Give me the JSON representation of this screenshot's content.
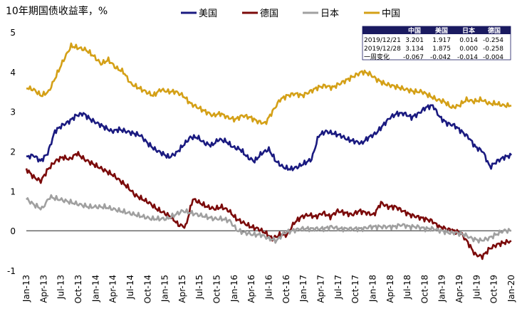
{
  "chart_data": {
    "type": "line",
    "title": "10年期国债收益率，%",
    "ylim": [
      -1,
      5
    ],
    "yticks": [
      5,
      4,
      3,
      2,
      1,
      0,
      -1
    ],
    "x_ticks": [
      "Jan-13",
      "Apr-13",
      "Jul-13",
      "Oct-13",
      "Jan-14",
      "Apr-14",
      "Jul-14",
      "Oct-14",
      "Jan-15",
      "Apr-15",
      "Jul-15",
      "Oct-15",
      "Jan-16",
      "Apr-16",
      "Jul-16",
      "Oct-16",
      "Jan-17",
      "Apr-17",
      "Jul-17",
      "Oct-17",
      "Jan-18",
      "Apr-18",
      "Jul-18",
      "Oct-18",
      "Jan-19",
      "Apr-19",
      "Jul-19",
      "Oct-19",
      "Jan-20"
    ],
    "series": [
      {
        "name": "美国",
        "color": "#1a1a80",
        "values": [
          1.85,
          1.9,
          1.75,
          1.95,
          2.5,
          2.65,
          2.75,
          2.9,
          2.95,
          2.8,
          2.7,
          2.6,
          2.5,
          2.55,
          2.5,
          2.45,
          2.4,
          2.2,
          2.05,
          1.95,
          1.85,
          1.95,
          2.15,
          2.35,
          2.35,
          2.2,
          2.15,
          2.3,
          2.25,
          2.1,
          2.05,
          1.85,
          1.75,
          1.95,
          2.05,
          1.75,
          1.6,
          1.55,
          1.6,
          1.7,
          1.8,
          2.4,
          2.5,
          2.45,
          2.4,
          2.3,
          2.25,
          2.2,
          2.35,
          2.45,
          2.65,
          2.85,
          2.95,
          2.95,
          2.85,
          2.95,
          3.1,
          3.15,
          2.85,
          2.7,
          2.65,
          2.5,
          2.35,
          2.1,
          2.0,
          1.6,
          1.75,
          1.85,
          1.9
        ]
      },
      {
        "name": "德国",
        "color": "#7b0a0a",
        "values": [
          1.55,
          1.35,
          1.25,
          1.55,
          1.75,
          1.85,
          1.8,
          1.95,
          1.8,
          1.7,
          1.6,
          1.5,
          1.4,
          1.25,
          1.1,
          0.9,
          0.8,
          0.7,
          0.55,
          0.45,
          0.35,
          0.15,
          0.1,
          0.8,
          0.7,
          0.6,
          0.55,
          0.6,
          0.5,
          0.3,
          0.2,
          0.1,
          0.05,
          -0.05,
          -0.2,
          -0.1,
          -0.1,
          0.2,
          0.35,
          0.4,
          0.35,
          0.45,
          0.35,
          0.5,
          0.45,
          0.4,
          0.5,
          0.45,
          0.4,
          0.7,
          0.6,
          0.6,
          0.5,
          0.4,
          0.35,
          0.3,
          0.25,
          0.1,
          0.05,
          0.0,
          -0.05,
          -0.3,
          -0.6,
          -0.65,
          -0.45,
          -0.35,
          -0.3,
          -0.258
        ]
      },
      {
        "name": "日本",
        "color": "#a0a0a0",
        "values": [
          0.8,
          0.65,
          0.55,
          0.85,
          0.8,
          0.75,
          0.7,
          0.65,
          0.6,
          0.6,
          0.6,
          0.55,
          0.5,
          0.45,
          0.4,
          0.35,
          0.3,
          0.3,
          0.3,
          0.4,
          0.5,
          0.45,
          0.4,
          0.35,
          0.3,
          0.3,
          0.25,
          0.0,
          -0.05,
          -0.1,
          -0.1,
          -0.2,
          -0.25,
          -0.05,
          0.0,
          0.05,
          0.05,
          0.05,
          0.05,
          0.1,
          0.05,
          0.05,
          0.05,
          0.05,
          0.1,
          0.1,
          0.1,
          0.1,
          0.15,
          0.1,
          0.1,
          0.05,
          0.05,
          0.0,
          -0.05,
          -0.05,
          -0.1,
          -0.2,
          -0.25,
          -0.2,
          -0.1,
          0.0,
          0.0
        ]
      },
      {
        "name": "中国",
        "color": "#d4a017",
        "values": [
          3.6,
          3.55,
          3.4,
          3.5,
          3.9,
          4.3,
          4.65,
          4.6,
          4.55,
          4.4,
          4.2,
          4.3,
          4.1,
          4.0,
          3.7,
          3.6,
          3.5,
          3.4,
          3.55,
          3.5,
          3.5,
          3.4,
          3.2,
          3.1,
          3.0,
          2.9,
          2.95,
          2.85,
          2.8,
          2.9,
          2.85,
          2.75,
          2.7,
          3.0,
          3.3,
          3.4,
          3.45,
          3.4,
          3.5,
          3.6,
          3.65,
          3.6,
          3.7,
          3.8,
          3.9,
          4.0,
          3.95,
          3.8,
          3.7,
          3.65,
          3.6,
          3.55,
          3.5,
          3.5,
          3.4,
          3.3,
          3.25,
          3.1,
          3.15,
          3.3,
          3.25,
          3.3,
          3.2,
          3.2,
          3.15,
          3.15
        ]
      }
    ],
    "table": {
      "headers": [
        "",
        "中国",
        "美国",
        "日本",
        "德国"
      ],
      "rows": [
        [
          "2019/12/21",
          "3.201",
          "1.917",
          "0.014",
          "-0.254"
        ],
        [
          "2019/12/28",
          "3.134",
          "1.875",
          "0.000",
          "-0.258"
        ],
        [
          "一周变化",
          "-0.067",
          "-0.042",
          "-0.014",
          "-0.004"
        ]
      ]
    }
  }
}
